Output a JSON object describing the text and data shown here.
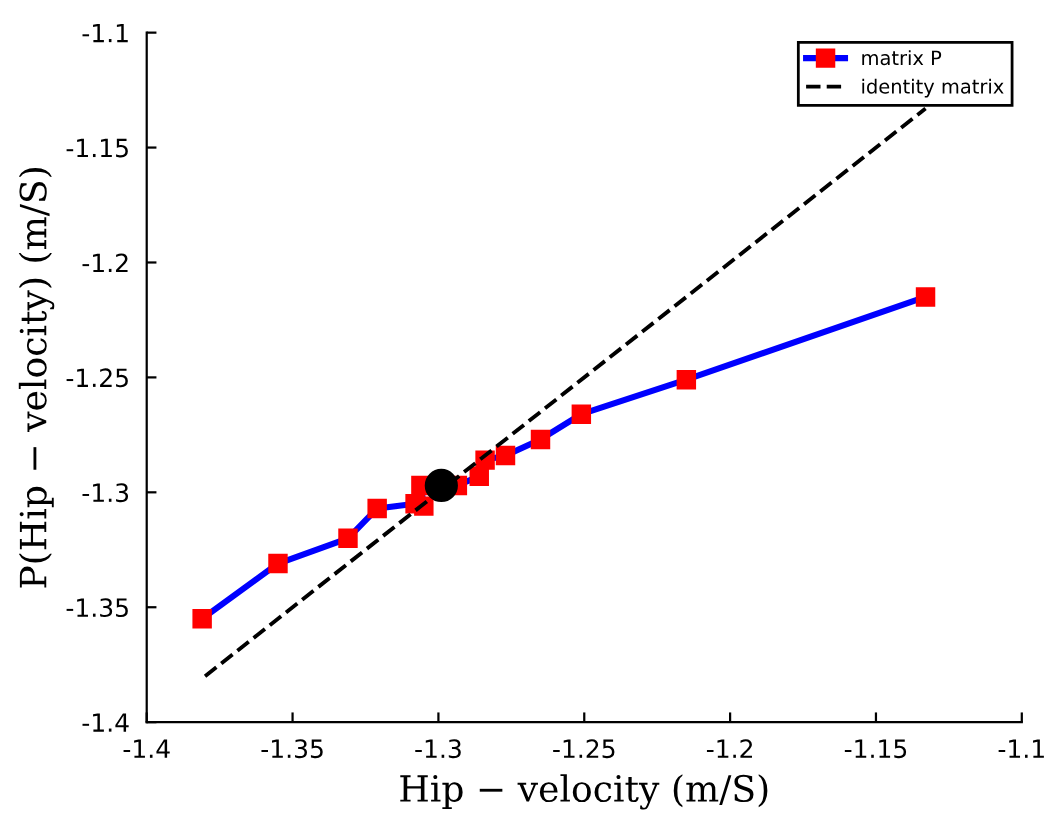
{
  "chart_data": {
    "type": "line",
    "xlabel": "Hip − velocity (m/S)",
    "ylabel": "P(Hip − velocity) (m/S)",
    "xlim": [
      -1.4,
      -1.1
    ],
    "xticks": [
      -1.4,
      -1.35,
      -1.3,
      -1.25,
      -1.2,
      -1.15,
      -1.1
    ],
    "ylim": [
      -1.4,
      -1.1
    ],
    "yticks": [
      -1.4,
      -1.35,
      -1.3,
      -1.25,
      -1.2,
      -1.15,
      -1.1
    ],
    "grid": false,
    "legend": "top right",
    "series": [
      {
        "name": "matrix P",
        "color": "#0000ff",
        "marker": "square",
        "line_style": "solid",
        "x": [
          -1.381,
          -1.355,
          -1.331,
          -1.321,
          -1.308,
          -1.305,
          -1.306,
          -1.2935,
          -1.286,
          -1.284,
          -1.277,
          -1.265,
          -1.251,
          -1.215,
          -1.133
        ],
        "values": [
          -1.355,
          -1.331,
          -1.32,
          -1.307,
          -1.305,
          -1.306,
          -1.297,
          -1.297,
          -1.293,
          -1.286,
          -1.284,
          -1.277,
          -1.266,
          -1.251,
          -1.215
        ]
      },
      {
        "name": "identity matrix",
        "color": "#000000",
        "marker": "none",
        "line_style": "dashed",
        "x": [
          -1.38,
          -1.133
        ],
        "values": [
          -1.38,
          -1.133
        ]
      },
      {
        "type": "scatter",
        "color": "#000000",
        "marker": "circle",
        "x": [
          -1.299
        ],
        "values": [
          -1.297
        ]
      }
    ]
  }
}
